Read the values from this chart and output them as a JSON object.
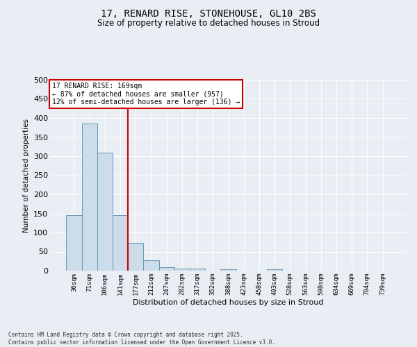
{
  "title_line1": "17, RENARD RISE, STONEHOUSE, GL10 2BS",
  "title_line2": "Size of property relative to detached houses in Stroud",
  "xlabel": "Distribution of detached houses by size in Stroud",
  "ylabel": "Number of detached properties",
  "bar_color": "#ccdce8",
  "bar_edge_color": "#6699bb",
  "categories": [
    "36sqm",
    "71sqm",
    "106sqm",
    "141sqm",
    "177sqm",
    "212sqm",
    "247sqm",
    "282sqm",
    "317sqm",
    "352sqm",
    "388sqm",
    "423sqm",
    "458sqm",
    "493sqm",
    "528sqm",
    "563sqm",
    "598sqm",
    "634sqm",
    "669sqm",
    "704sqm",
    "739sqm"
  ],
  "values": [
    145,
    385,
    310,
    145,
    72,
    27,
    10,
    5,
    5,
    0,
    4,
    0,
    0,
    3,
    0,
    0,
    0,
    0,
    0,
    0,
    0
  ],
  "vline_color": "#cc0000",
  "vline_pos": 3.5,
  "annotation_title": "17 RENARD RISE: 169sqm",
  "annotation_line1": "← 87% of detached houses are smaller (957)",
  "annotation_line2": "12% of semi-detached houses are larger (136) →",
  "ylim": [
    0,
    500
  ],
  "yticks": [
    0,
    50,
    100,
    150,
    200,
    250,
    300,
    350,
    400,
    450,
    500
  ],
  "footer_line1": "Contains HM Land Registry data © Crown copyright and database right 2025.",
  "footer_line2": "Contains public sector information licensed under the Open Government Licence v3.0.",
  "bg_color": "#e8eef4"
}
